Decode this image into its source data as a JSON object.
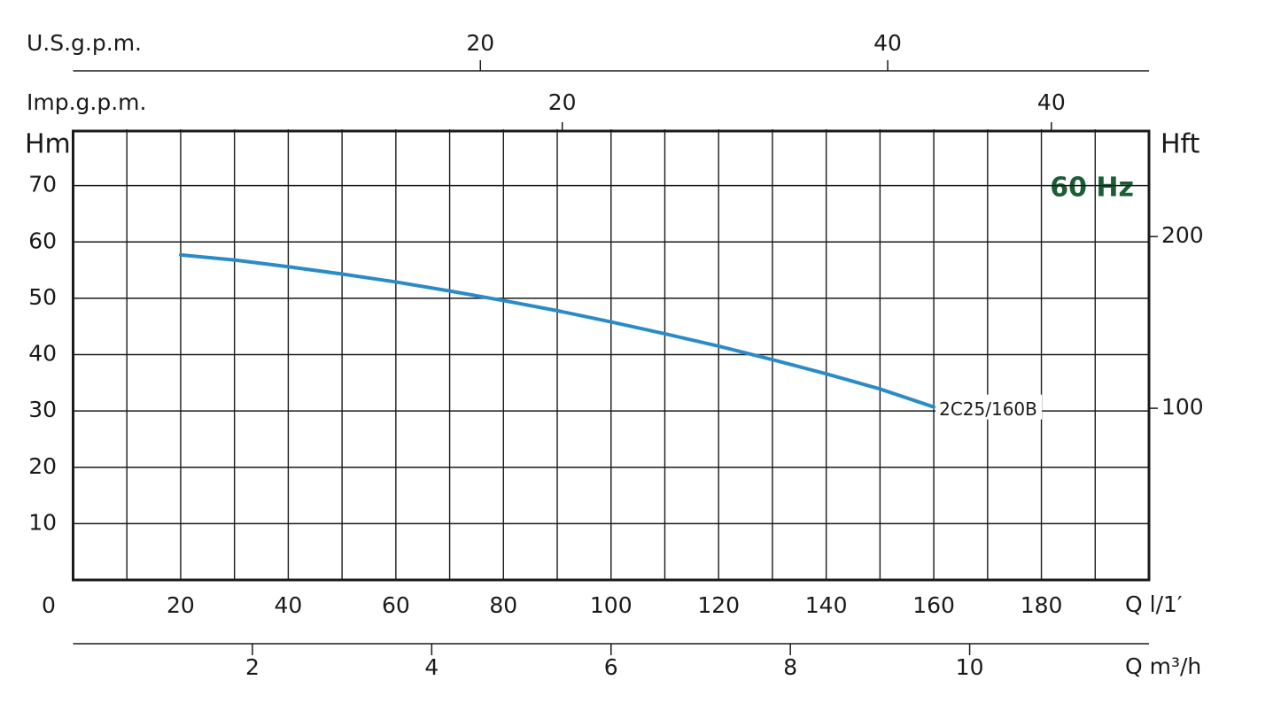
{
  "chart_data": {
    "type": "line",
    "annotation": "60 Hz",
    "annotation_color": "#1b5e35",
    "y_label": "Hm",
    "y2_label": "Hft",
    "x_label": "Q l/1′",
    "xlim": [
      0,
      200
    ],
    "xticks": [
      0,
      20,
      40,
      60,
      80,
      100,
      120,
      140,
      160,
      180
    ],
    "xminorticks": [
      10,
      30,
      50,
      70,
      90,
      110,
      130,
      150,
      170,
      190
    ],
    "ylim": [
      0,
      80
    ],
    "yticks": [
      10,
      20,
      30,
      40,
      50,
      60,
      70
    ],
    "y2lim": [
      0,
      262.5
    ],
    "y2ticks": [
      100,
      200
    ],
    "grid": true,
    "us_gpm_axis": {
      "label": "U.S.g.p.m.",
      "lim": [
        0,
        52.83
      ],
      "ticks": [
        20,
        40
      ]
    },
    "imp_gpm_axis": {
      "label": "Imp.g.p.m.",
      "lim": [
        0,
        43.99
      ],
      "ticks": [
        20,
        40
      ]
    },
    "m3h_axis": {
      "label": "Q m³/h",
      "lim": [
        0,
        12
      ],
      "ticks": [
        2,
        4,
        6,
        8,
        10
      ]
    },
    "series": [
      {
        "name": "2C25/160B",
        "color": "#2a8bc6",
        "x": [
          20,
          30,
          40,
          50,
          60,
          70,
          80,
          90,
          100,
          110,
          120,
          130,
          140,
          150,
          160
        ],
        "values": [
          57.7,
          56.8,
          55.6,
          54.3,
          52.9,
          51.3,
          49.6,
          47.8,
          45.8,
          43.7,
          41.5,
          39.1,
          36.6,
          33.9,
          30.7
        ]
      }
    ]
  }
}
